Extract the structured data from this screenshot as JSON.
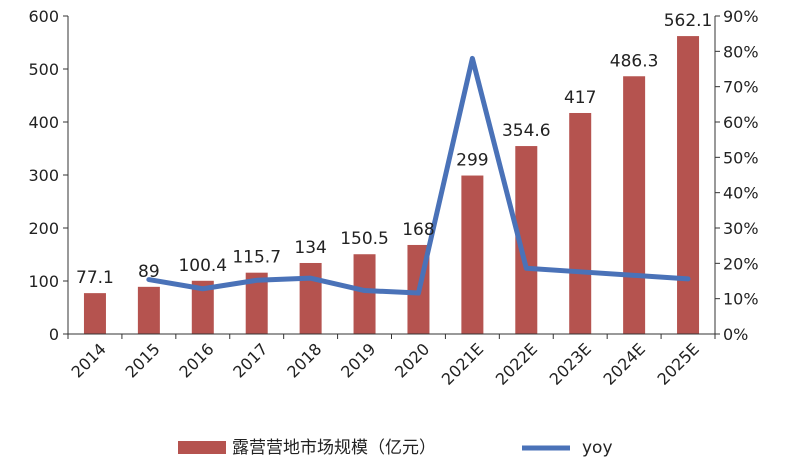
{
  "chart_data": {
    "type": "bar",
    "categories": [
      "2014",
      "2015",
      "2016",
      "2017",
      "2018",
      "2019",
      "2020",
      "2021E",
      "2022E",
      "2023E",
      "2024E",
      "2025E"
    ],
    "series": [
      {
        "name": "露营营地市场规模（亿元）",
        "type": "bar",
        "axis": "left",
        "color": "#b5534f",
        "values": [
          77.1,
          89,
          100.4,
          115.7,
          134,
          150.5,
          168,
          299,
          354.6,
          417,
          486.3,
          562.1
        ],
        "labels": [
          "77.1",
          "89",
          "100.4",
          "115.7",
          "134",
          "150.5",
          "168",
          "299",
          "354.6",
          "417",
          "486.3",
          "562.1"
        ]
      },
      {
        "name": "yoy",
        "type": "line",
        "axis": "right",
        "color": "#4a72b8",
        "values": [
          null,
          15.4,
          12.8,
          15.2,
          15.8,
          12.3,
          11.6,
          78.0,
          18.6,
          17.6,
          16.6,
          15.6
        ]
      }
    ],
    "y_left": {
      "min": 0,
      "max": 600,
      "ticks": [
        "0",
        "100",
        "200",
        "300",
        "400",
        "500",
        "600"
      ]
    },
    "y_right": {
      "min": 0,
      "max": 90,
      "ticks": [
        "0%",
        "10%",
        "20%",
        "30%",
        "40%",
        "50%",
        "60%",
        "70%",
        "80%",
        "90%"
      ]
    },
    "grid": false,
    "legend_position": "bottom"
  }
}
